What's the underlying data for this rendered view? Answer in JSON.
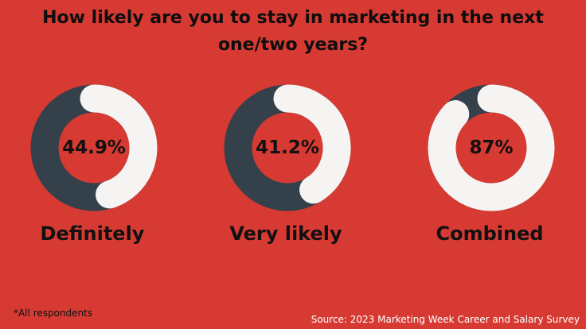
{
  "title_lines": [
    "How likely are you to stay in marketing in the next",
    "one/two years?"
  ],
  "colors": {
    "background": "#d63a32",
    "ring_track": "#34404a",
    "ring_fill": "#f6f4f3",
    "title_text": "#0e0e0e"
  },
  "chart_data": {
    "type": "pie",
    "style": "donut",
    "items": [
      {
        "label": "Definitely",
        "value": 44.9,
        "value_label": "44.9%"
      },
      {
        "label": "Very likely",
        "value": 41.2,
        "value_label": "41.2%"
      },
      {
        "label": "Combined",
        "value": 87,
        "value_label": "87%"
      }
    ]
  },
  "footnote": "*All respondents",
  "source": "Source: 2023 Marketing Week Career and Salary Survey"
}
